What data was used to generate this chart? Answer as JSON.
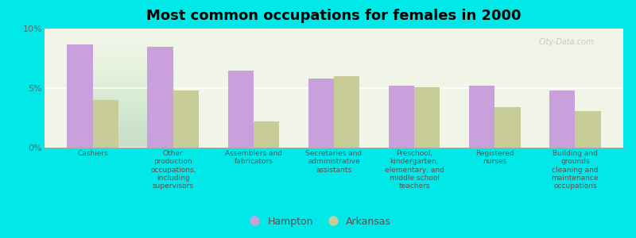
{
  "title": "Most common occupations for females in 2000",
  "categories": [
    "Cashiers",
    "Other\nproduction\noccupations,\nincluding\nsupervisors",
    "Assemblers and\nfabricators",
    "Secretaries and\nadministrative\nassistants",
    "Preschool,\nkindergarten,\nelementary, and\nmiddle school\nteachers",
    "Registered\nnurses",
    "Building and\ngrounds\ncleaning and\nmaintenance\noccupations"
  ],
  "hampton_values": [
    8.7,
    8.5,
    6.5,
    5.8,
    5.2,
    5.2,
    4.8
  ],
  "arkansas_values": [
    4.0,
    4.8,
    2.2,
    6.0,
    5.1,
    3.4,
    3.1
  ],
  "hampton_color": "#c9a0dc",
  "arkansas_color": "#c8cc96",
  "background_color": "#00e8e8",
  "plot_bg_color": "#f0f5e8",
  "ylim": [
    0,
    10
  ],
  "yticks": [
    0,
    5,
    10
  ],
  "ytick_labels": [
    "0%",
    "5%",
    "10%"
  ],
  "legend_hampton": "Hampton",
  "legend_arkansas": "Arkansas",
  "title_fontsize": 13,
  "bar_width": 0.32,
  "watermark": "City-Data.com"
}
